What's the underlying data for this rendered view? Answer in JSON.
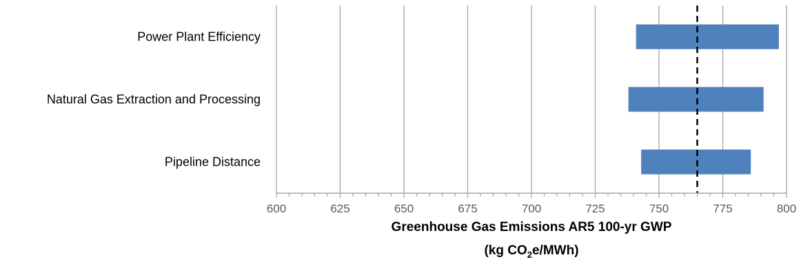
{
  "chart_data": {
    "type": "bar",
    "orientation": "horizontal",
    "subtype": "floating-range (tornado)",
    "categories": [
      "Power Plant Efficiency",
      "Natural Gas Extraction and Processing",
      "Pipeline Distance"
    ],
    "series": [
      {
        "low": [
          741,
          738,
          743
        ],
        "high": [
          797,
          791,
          786
        ]
      }
    ],
    "reference_line": {
      "value": 765,
      "style": "dashed",
      "color": "#000000"
    },
    "xlim": [
      600,
      800
    ],
    "xticks": [
      "600",
      "625",
      "650",
      "675",
      "700",
      "725",
      "750",
      "775",
      "800"
    ],
    "xlabel_line1": "Greenhouse Gas Emissions AR5 100-yr GWP",
    "xlabel_line2": {
      "prefix": "(kg CO",
      "sub": "2",
      "suffix": "e/MWh)"
    },
    "grid": "vertical major gridlines",
    "legend": "none",
    "colors": {
      "bar": "#4F81BD",
      "grid": "#A6A6A6",
      "axis": "#A6A6A6",
      "tick_text": "#595959"
    }
  }
}
